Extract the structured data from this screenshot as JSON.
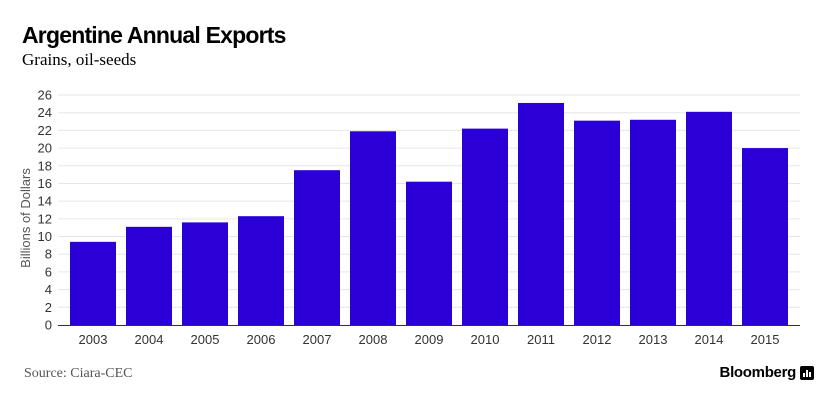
{
  "header": {
    "title": "Argentine Annual Exports",
    "subtitle": "Grains, oil-seeds"
  },
  "footer": {
    "source": "Source: Ciara-CEC",
    "brand": "Bloomberg",
    "brand_icon": "bloomberg-chart-icon"
  },
  "colors": {
    "bar": "#2b00d6",
    "grid": "#e6e6e6",
    "axis": "#333333",
    "text": "#333333"
  },
  "chart_data": {
    "type": "bar",
    "title": "Argentine Annual Exports",
    "subtitle": "Grains, oil-seeds",
    "xlabel": "",
    "ylabel": "Billions of Dollars",
    "categories": [
      "2003",
      "2004",
      "2005",
      "2006",
      "2007",
      "2008",
      "2009",
      "2010",
      "2011",
      "2012",
      "2013",
      "2014",
      "2015"
    ],
    "values": [
      9.4,
      11.1,
      11.6,
      12.3,
      17.5,
      21.9,
      16.2,
      22.2,
      25.1,
      23.1,
      23.2,
      24.1,
      20.0
    ],
    "ylim": [
      0,
      26
    ],
    "yticks": [
      0,
      2,
      4,
      6,
      8,
      10,
      12,
      14,
      16,
      18,
      20,
      22,
      24,
      26
    ],
    "grid": true,
    "legend": "none"
  }
}
